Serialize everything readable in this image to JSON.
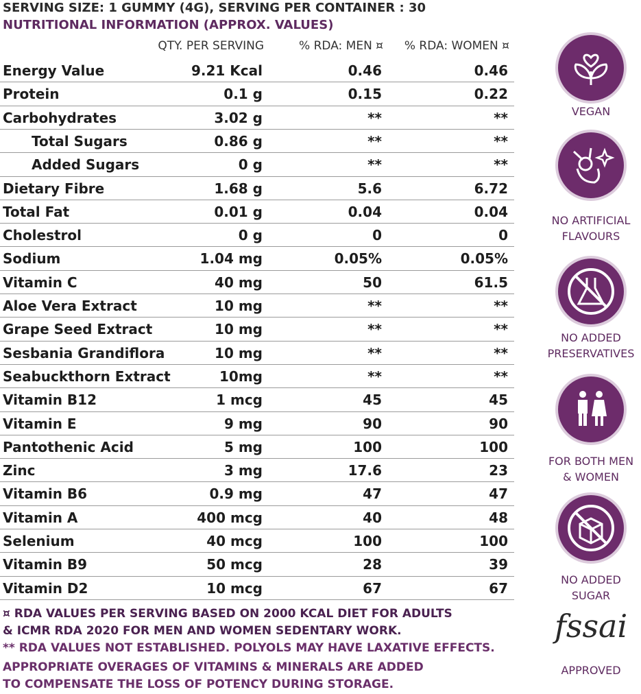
{
  "header": {
    "serving": "SERVING SIZE: 1 GUMMY (4G), SERVING PER CONTAINER : 30",
    "subtitle": "NUTRITIONAL INFORMATION (APPROX. VALUES)"
  },
  "table": {
    "columns": [
      "QTY. PER SERVING",
      "% RDA: MEN ¤",
      "% RDA: WOMEN ¤"
    ],
    "rows": [
      {
        "label": "Energy Value",
        "qty": "9.21 Kcal",
        "men": "0.46",
        "women": "0.46"
      },
      {
        "label": "Protein",
        "qty": "0.1 g",
        "men": "0.15",
        "women": "0.22"
      },
      {
        "label": "Carbohydrates",
        "qty": "3.02 g",
        "men": "**",
        "women": "**"
      },
      {
        "label": "Total Sugars",
        "qty": "0.86 g",
        "men": "**",
        "women": "**",
        "sub": true
      },
      {
        "label": "Added Sugars",
        "qty": "0 g",
        "men": "**",
        "women": "**",
        "sub": true
      },
      {
        "label": "Dietary Fibre",
        "qty": "1.68 g",
        "men": "5.6",
        "women": "6.72"
      },
      {
        "label": "Total Fat",
        "qty": "0.01 g",
        "men": "0.04",
        "women": "0.04"
      },
      {
        "label": "Cholestrol",
        "qty": "0 g",
        "men": "0",
        "women": "0"
      },
      {
        "label": "Sodium",
        "qty": "1.04 mg",
        "men": "0.05%",
        "women": "0.05%"
      },
      {
        "label": "Vitamin C",
        "qty": "40 mg",
        "men": "50",
        "women": "61.5"
      },
      {
        "label": "Aloe Vera Extract",
        "qty": "10 mg",
        "men": "**",
        "women": "**"
      },
      {
        "label": "Grape Seed Extract",
        "qty": "10 mg",
        "men": "**",
        "women": "**"
      },
      {
        "label": "Sesbania Grandiflora",
        "qty": "10 mg",
        "men": "**",
        "women": "**"
      },
      {
        "label": "Seabuckthorn Extract",
        "qty": "10mg",
        "men": "**",
        "women": "**"
      },
      {
        "label": "Vitamin B12",
        "qty": "1 mcg",
        "men": "45",
        "women": "45"
      },
      {
        "label": "Vitamin E",
        "qty": "9 mg",
        "men": "90",
        "women": "90"
      },
      {
        "label": "Pantothenic Acid",
        "qty": "5 mg",
        "men": "100",
        "women": "100"
      },
      {
        "label": "Zinc",
        "qty": "3 mg",
        "men": "17.6",
        "women": "23"
      },
      {
        "label": "Vitamin B6",
        "qty": "0.9 mg",
        "men": "47",
        "women": "47"
      },
      {
        "label": "Vitamin A",
        "qty": "400 mcg",
        "men": "40",
        "women": "48"
      },
      {
        "label": "Selenium",
        "qty": "40 mcg",
        "men": "100",
        "women": "100"
      },
      {
        "label": "Vitamin B9",
        "qty": "50 mcg",
        "men": "28",
        "women": "39"
      },
      {
        "label": "Vitamin D2",
        "qty": "10 mcg",
        "men": "67",
        "women": "67"
      }
    ]
  },
  "footnotes": [
    [
      "¤ RDA VALUES PER SERVING BASED ON 2000 KCAL DIET FOR ADULTS",
      "& ICMR RDA 2020 FOR MEN AND WOMEN SEDENTARY WORK."
    ],
    [
      "** RDA VALUES NOT ESTABLISHED. POLYOLS MAY HAVE LAXATIVE EFFECTS."
    ],
    [
      "APPROPRIATE OVERAGES OF VITAMINS & MINERALS ARE ADDED",
      "TO COMPENSATE THE LOSS OF POTENCY DURING STORAGE."
    ]
  ],
  "badges": [
    [
      "VEGAN"
    ],
    [
      "NO ARTIFICIAL",
      "FLAVOURS"
    ],
    [
      "NO ADDED",
      "PRESERVATIVES"
    ],
    [
      "FOR BOTH MEN",
      "& WOMEN"
    ],
    [
      "NO ADDED",
      "SUGAR"
    ]
  ],
  "certification": {
    "logo": "fssai",
    "label": "APPROVED"
  }
}
